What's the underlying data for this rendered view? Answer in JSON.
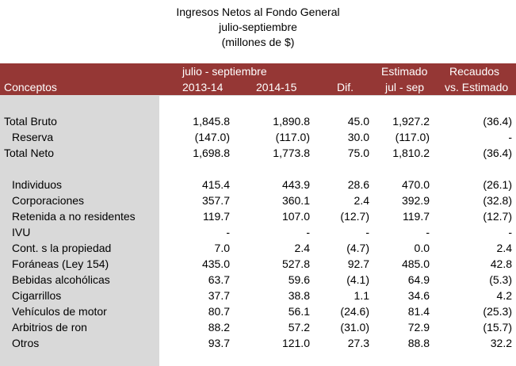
{
  "title": {
    "line1": "Ingresos Netos al Fondo General",
    "line2": "julio-septiembre",
    "line3": "(millones de $)"
  },
  "header": {
    "period": "julio - septiembre",
    "estimado": "Estimado",
    "recaudos": "Recaudos",
    "conceptos": "Conceptos",
    "y1": "2013-14",
    "y2": "2014-15",
    "dif": "Dif.",
    "jul_sep": "jul - sep",
    "vs_est": "vs. Estimado"
  },
  "rows": [
    {
      "label": "Total Bruto",
      "v1": "1,845.8",
      "v2": "1,890.8",
      "v3": "45.0",
      "v4": "1,927.2",
      "v5": "(36.4)"
    },
    {
      "label": "Reserva",
      "v1": "(147.0)",
      "v2": "(117.0)",
      "v3": "30.0",
      "v4": "(117.0)",
      "v5": "-"
    },
    {
      "label": "Total Neto",
      "v1": "1,698.8",
      "v2": "1,773.8",
      "v3": "75.0",
      "v4": "1,810.2",
      "v5": "(36.4)"
    },
    {
      "label": "Individuos",
      "v1": "415.4",
      "v2": "443.9",
      "v3": "28.6",
      "v4": "470.0",
      "v5": "(26.1)"
    },
    {
      "label": "Corporaciones",
      "v1": "357.7",
      "v2": "360.1",
      "v3": "2.4",
      "v4": "392.9",
      "v5": "(32.8)"
    },
    {
      "label": "Retenida a no residentes",
      "v1": "119.7",
      "v2": "107.0",
      "v3": "(12.7)",
      "v4": "119.7",
      "v5": "(12.7)"
    },
    {
      "label": "IVU",
      "v1": "-",
      "v2": "-",
      "v3": "-",
      "v4": "-",
      "v5": "-"
    },
    {
      "label": "Cont. s la propiedad",
      "v1": "7.0",
      "v2": "2.4",
      "v3": "(4.7)",
      "v4": "0.0",
      "v5": "2.4"
    },
    {
      "label": "Foráneas (Ley 154)",
      "v1": "435.0",
      "v2": "527.8",
      "v3": "92.7",
      "v4": "485.0",
      "v5": "42.8"
    },
    {
      "label": "Bebidas alcohólicas",
      "v1": "63.7",
      "v2": "59.6",
      "v3": "(4.1)",
      "v4": "64.9",
      "v5": "(5.3)"
    },
    {
      "label": "Cigarrillos",
      "v1": "37.7",
      "v2": "38.8",
      "v3": "1.1",
      "v4": "34.6",
      "v5": "4.2"
    },
    {
      "label": "Vehículos de motor",
      "v1": "80.7",
      "v2": "56.1",
      "v3": "(24.6)",
      "v4": "81.4",
      "v5": "(25.3)"
    },
    {
      "label": "Arbitrios de ron",
      "v1": "88.2",
      "v2": "57.2",
      "v3": "(31.0)",
      "v4": "72.9",
      "v5": "(15.7)"
    },
    {
      "label": "Otros",
      "v1": "93.7",
      "v2": "121.0",
      "v3": "27.3",
      "v4": "88.8",
      "v5": "32.2"
    }
  ]
}
